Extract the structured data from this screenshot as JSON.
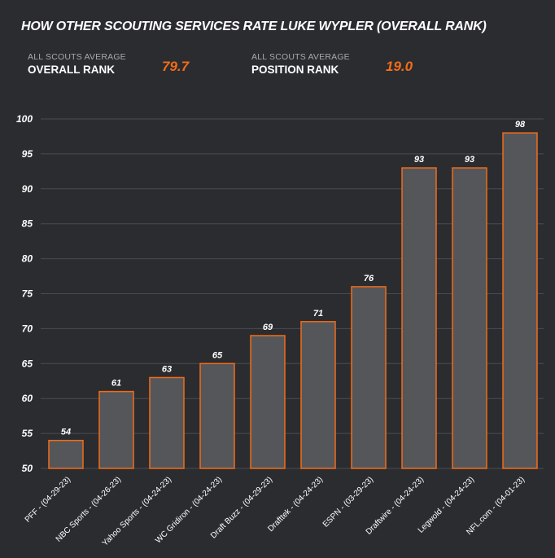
{
  "header": {
    "title": "HOW OTHER SCOUTING SERVICES RATE LUKE WYPLER (OVERALL RANK)"
  },
  "stats": [
    {
      "caption": "ALL SCOUTS AVERAGE",
      "label": "OVERALL RANK",
      "value": "79.7"
    },
    {
      "caption": "ALL SCOUTS AVERAGE",
      "label": "POSITION RANK",
      "value": "19.0"
    }
  ],
  "colors": {
    "background": "#2b2c30",
    "bar_fill": "#55565a",
    "bar_stroke": "#f26c17",
    "accent": "#f26c17",
    "grid": "#4a4b50"
  },
  "chart_data": {
    "type": "bar",
    "title": "HOW OTHER SCOUTING SERVICES RATE LUKE WYPLER (OVERALL RANK)",
    "categories": [
      "PFF - (04-29-23)",
      "NBC Sports - (04-26-23)",
      "Yahoo Sports - (04-24-23)",
      "WC Gridiron - (04-24-23)",
      "Draft Buzz - (04-29-23)",
      "Drafttek - (04-24-23)",
      "ESPN - (03-29-23)",
      "Draftwire - (04-24-23)",
      "Legwold - (04-24-23)",
      "NFL.com - (04-01-23)"
    ],
    "values": [
      54,
      61,
      63,
      65,
      69,
      71,
      76,
      93,
      93,
      98
    ],
    "ylim": [
      50,
      100
    ],
    "yticks": [
      50,
      55,
      60,
      65,
      70,
      75,
      80,
      85,
      90,
      95,
      100
    ],
    "grid": true,
    "data_labels": true
  }
}
